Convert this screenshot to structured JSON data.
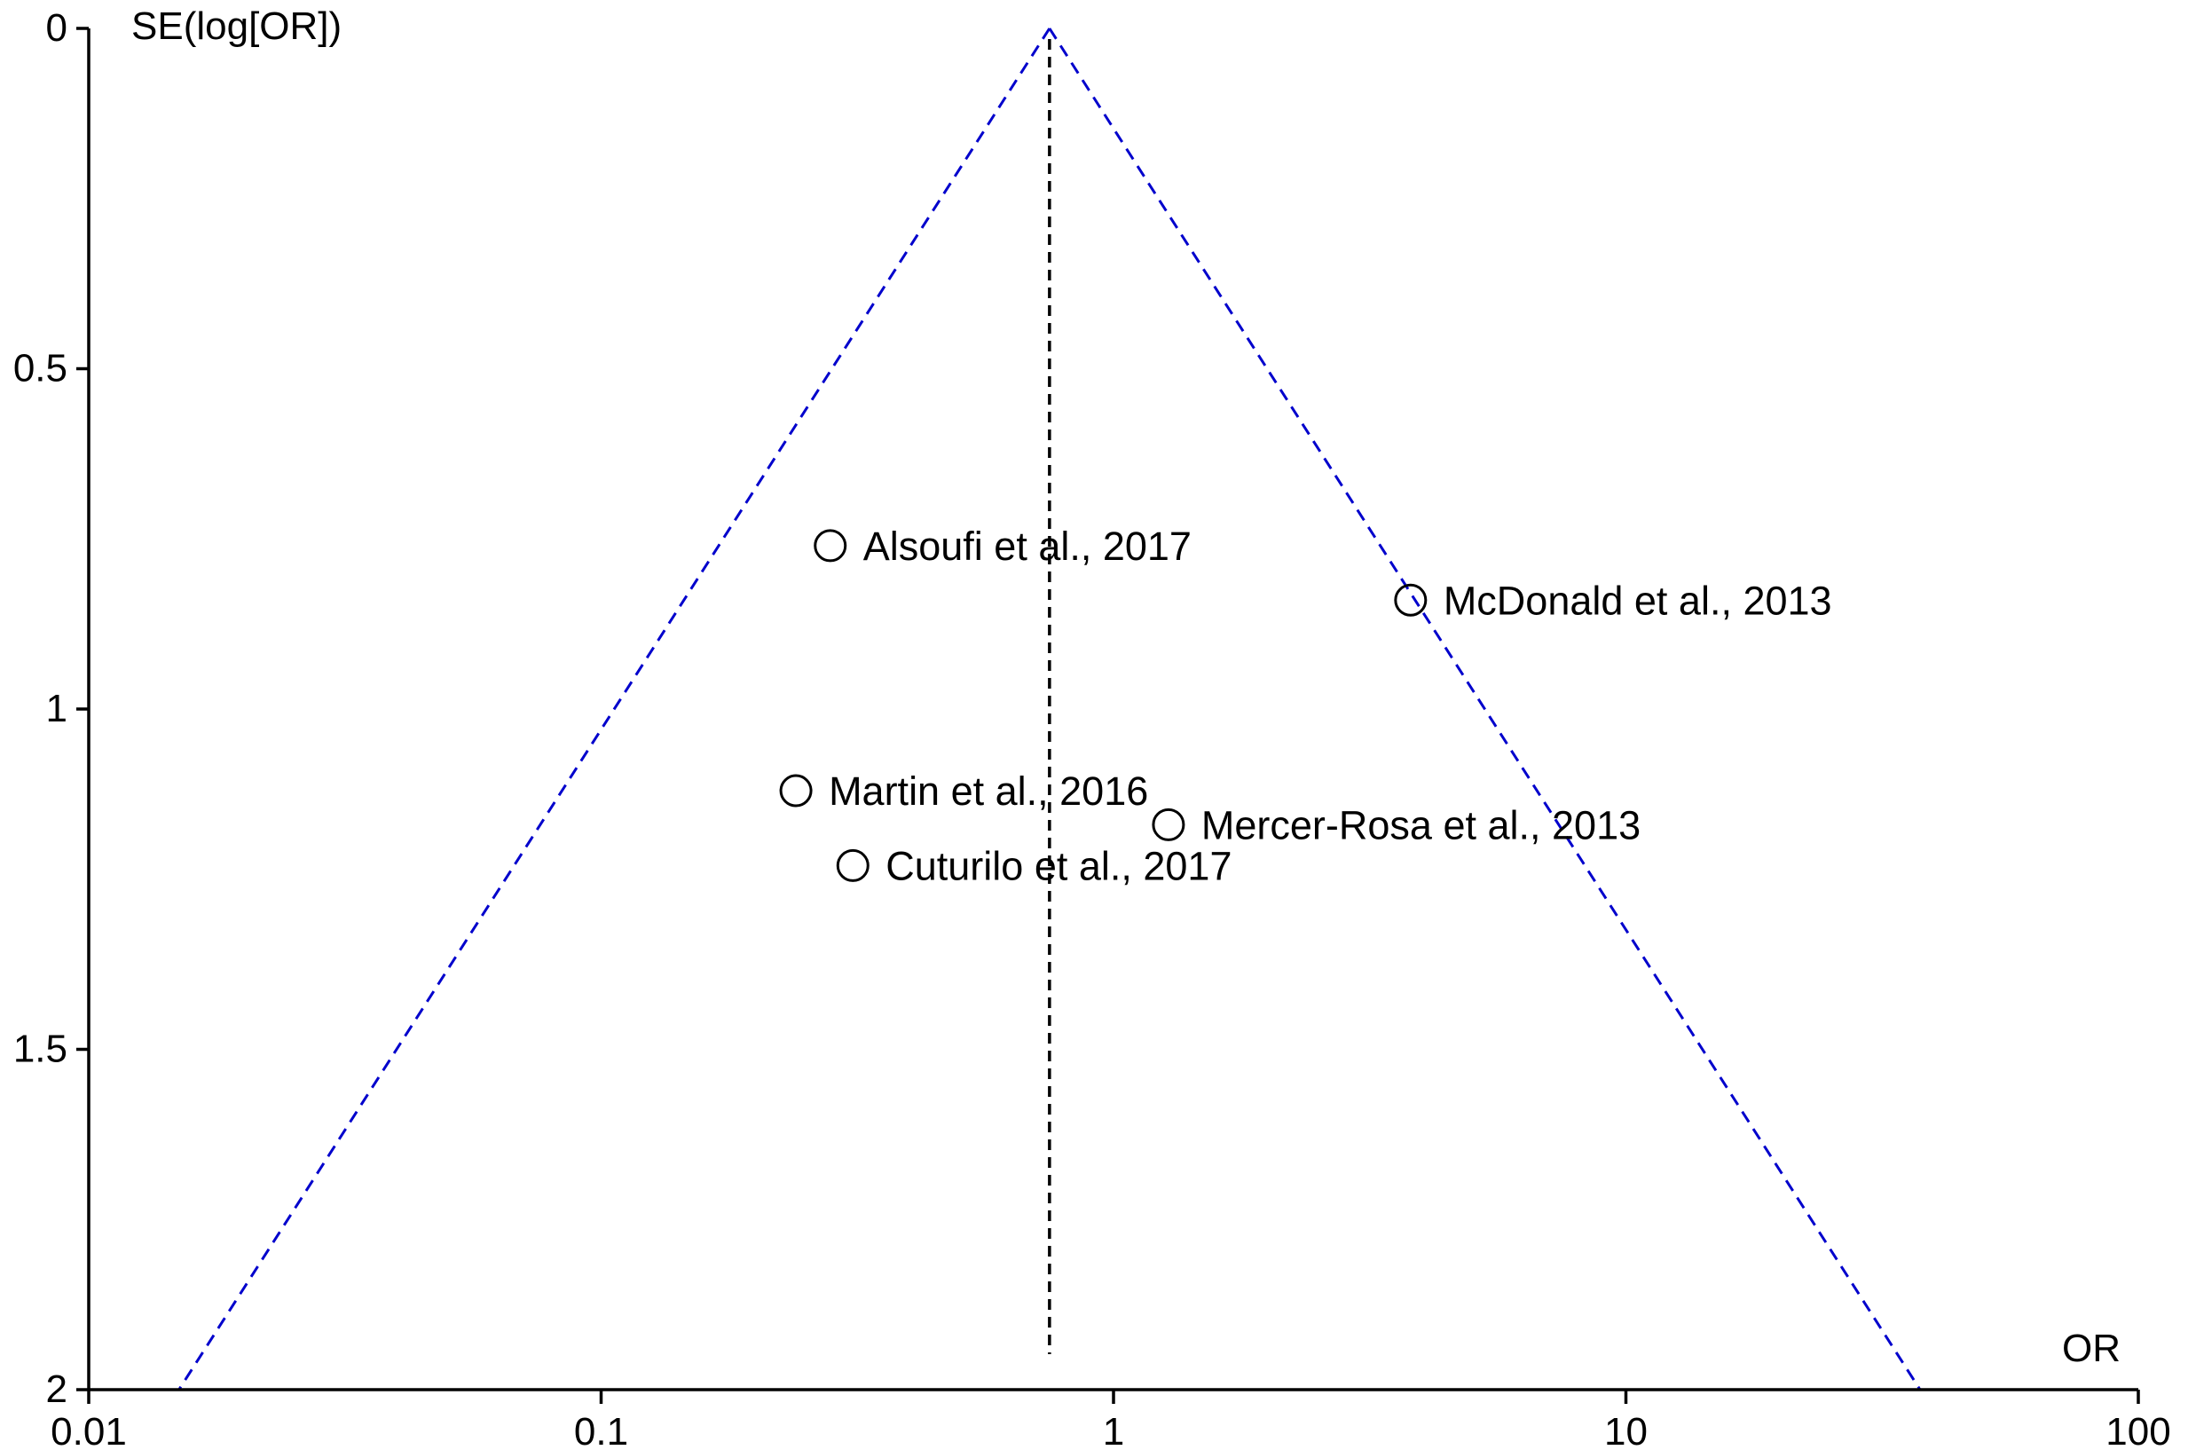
{
  "chart_data": {
    "type": "scatter",
    "subtype": "funnel-plot",
    "title": "",
    "xlabel": "OR",
    "ylabel": "SE(log[OR])",
    "x_scale": "log",
    "xlim": [
      0.01,
      100
    ],
    "ylim": [
      0,
      2
    ],
    "y_inverted": true,
    "x_ticks": [
      "0.01",
      "0.1",
      "1",
      "10",
      "100"
    ],
    "y_ticks": [
      "0",
      "0.5",
      "1",
      "1.5",
      "2"
    ],
    "pooled_or": 0.75,
    "funnel_limits_at_se_2": [
      0.015,
      37.5
    ],
    "grid": false,
    "legend": "none",
    "colors": {
      "funnel": "#0000cc",
      "pooled_line": "#000000",
      "points": "#000000"
    },
    "points": [
      {
        "label": "Alsoufi et al., 2017",
        "or": 0.28,
        "se": 0.76
      },
      {
        "label": "McDonald et al., 2013",
        "or": 3.8,
        "se": 0.84
      },
      {
        "label": "Martin et al., 2016",
        "or": 0.24,
        "se": 1.12
      },
      {
        "label": "Mercer-Rosa et al., 2013",
        "or": 1.28,
        "se": 1.17
      },
      {
        "label": "Cuturilo et al., 2017",
        "or": 0.31,
        "se": 1.23
      }
    ]
  }
}
